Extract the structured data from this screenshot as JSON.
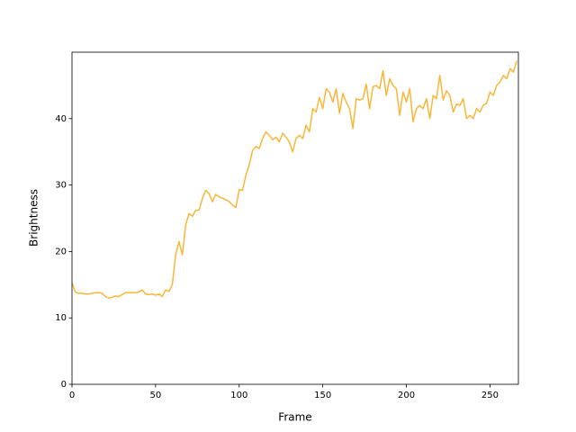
{
  "chart_data": {
    "type": "line",
    "xlabel": "Frame",
    "ylabel": "Brightness",
    "x": [
      0,
      2,
      4,
      6,
      8,
      10,
      12,
      14,
      16,
      18,
      20,
      22,
      24,
      26,
      28,
      30,
      32,
      34,
      36,
      38,
      40,
      42,
      44,
      46,
      48,
      50,
      52,
      54,
      56,
      58,
      60,
      62,
      64,
      66,
      68,
      70,
      72,
      74,
      76,
      78,
      80,
      82,
      84,
      86,
      88,
      90,
      92,
      94,
      96,
      98,
      100,
      102,
      104,
      106,
      108,
      110,
      112,
      114,
      116,
      118,
      120,
      122,
      124,
      126,
      128,
      130,
      132,
      134,
      136,
      138,
      140,
      142,
      144,
      146,
      148,
      150,
      152,
      154,
      156,
      158,
      160,
      162,
      164,
      166,
      168,
      170,
      172,
      174,
      176,
      178,
      180,
      182,
      184,
      186,
      188,
      190,
      192,
      194,
      196,
      198,
      200,
      202,
      204,
      206,
      208,
      210,
      212,
      214,
      216,
      218,
      220,
      222,
      224,
      226,
      228,
      230,
      232,
      234,
      236,
      238,
      240,
      242,
      244,
      246,
      248,
      250,
      252,
      254,
      256,
      258,
      260,
      262,
      264,
      266
    ],
    "values": [
      15.3,
      13.9,
      13.7,
      13.7,
      13.6,
      13.6,
      13.7,
      13.8,
      13.8,
      13.7,
      13.2,
      13.0,
      13.1,
      13.3,
      13.2,
      13.5,
      13.8,
      13.8,
      13.8,
      13.8,
      13.9,
      14.2,
      13.6,
      13.5,
      13.6,
      13.4,
      13.6,
      13.2,
      14.2,
      14.0,
      15.0,
      19.5,
      21.5,
      19.5,
      24,
      25.7,
      25.3,
      26.2,
      26.2,
      28,
      29.2,
      28.7,
      27.5,
      28.6,
      28.2,
      28,
      27.8,
      27.5,
      27,
      26.6,
      29.3,
      29.2,
      31.5,
      33,
      35.2,
      35.8,
      35.5,
      37,
      38,
      37.5,
      36.8,
      37.2,
      36.5,
      37.8,
      37.2,
      36.5,
      35,
      37,
      37.5,
      37,
      39,
      38,
      41.5,
      41,
      43.2,
      41.5,
      44.5,
      44,
      42.5,
      44.5,
      40.8,
      43.8,
      42.5,
      41.5,
      38.5,
      43,
      42.8,
      43,
      45.2,
      41.5,
      44.8,
      45,
      44.5,
      47.2,
      43.5,
      46,
      45,
      44.5,
      40.5,
      44,
      42.5,
      44.5,
      39.5,
      41.5,
      42,
      41.5,
      43,
      40,
      43.5,
      43,
      46.5,
      42.8,
      44.2,
      43.5,
      41,
      42.2,
      42,
      43,
      40,
      40.5,
      40,
      41.5,
      41,
      42,
      42.3,
      44,
      43.5,
      45,
      45.5,
      46.5,
      46,
      47.5,
      47,
      48.7
    ],
    "color": "#f9b73a",
    "xlim": [
      0,
      267
    ],
    "xticks": [
      0,
      50,
      100,
      150,
      200,
      250
    ],
    "ylim": [
      0,
      50
    ],
    "yticks": [
      0,
      10,
      20,
      30,
      40
    ],
    "grid": false
  }
}
